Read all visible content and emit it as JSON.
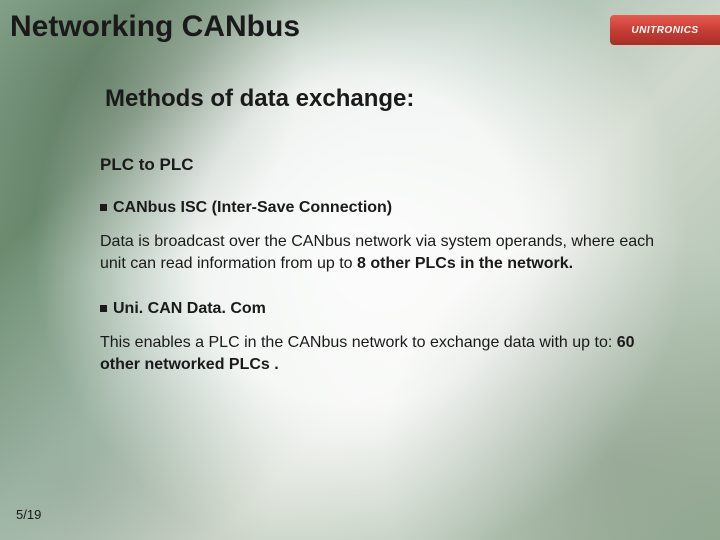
{
  "slide": {
    "title": "Networking CANbus",
    "subtitle": "Methods of data exchange:",
    "logo_text": "UNITRONICS",
    "page_number": "5/19",
    "background_colors": {
      "pcb_green_dark": "#6b8b6f",
      "pcb_green_light": "#a8bfb0",
      "content_fade": "#ffffff"
    },
    "accent_color": "#c73e36",
    "text_color": "#1a1a1a",
    "title_fontsize": 30,
    "subtitle_fontsize": 24,
    "body_fontsize": 16
  },
  "content": {
    "section_heading": "PLC to PLC",
    "items": [
      {
        "bullet_title": "CANbus ISC (Inter-Save Connection)",
        "body_before": "Data is broadcast over the CANbus network via system operands, where each unit can read information from up to ",
        "body_bold": "8 other PLCs in the network.",
        "body_after": ""
      },
      {
        "bullet_title": "Uni. CAN Data. Com",
        "body_before": "This enables a PLC in the CANbus network to exchange data with up to: ",
        "body_bold": "60 other networked PLCs .",
        "body_after": ""
      }
    ]
  }
}
